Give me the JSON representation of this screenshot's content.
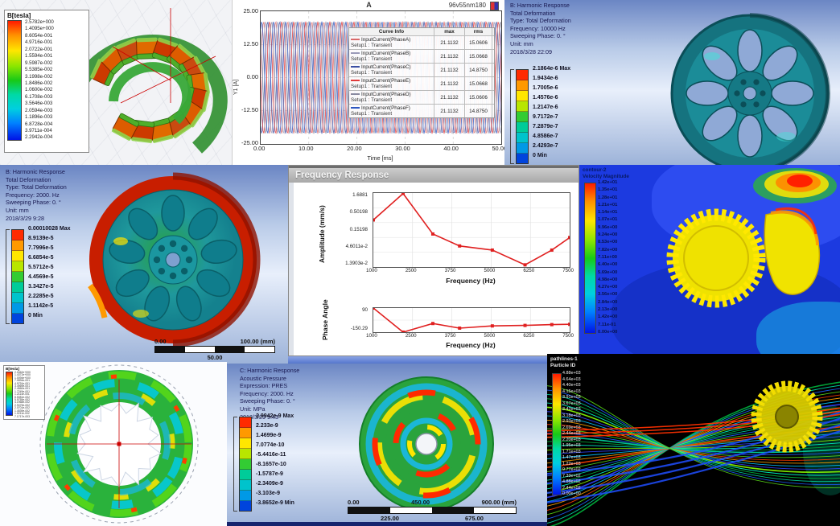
{
  "ansys_band_colors": [
    "#ff2a00",
    "#ff9900",
    "#ffe600",
    "#b8e600",
    "#33cc33",
    "#00cc99",
    "#00c3cc",
    "#0099e6",
    "#0044dd"
  ],
  "panels": {
    "flux_segment": {
      "legend_title": "B[tesla]",
      "legend_values": [
        "2.5782e+000",
        "1.4095e+000",
        "8.6054e-001",
        "4.9716e-001",
        "2.0722e-001",
        "1.5594e-001",
        "9.5987e-002",
        "5.5385e-002",
        "3.1998e-002",
        "1.8486e-002",
        "1.0600e-002",
        "6.1708e-003",
        "3.5646e-003",
        "2.0594e-003",
        "1.1896e-003",
        "6.8728e-004",
        "3.9711e-004",
        "2.2942e-004"
      ]
    },
    "current_plot": {
      "title": "A",
      "model_label": "96v55nm180",
      "y_axis_label": "Y1 [A]",
      "x_axis_label": "Time [ms]",
      "y_ticks": [
        "25.00",
        "12.50",
        "0.00",
        "-12.50",
        "-25.00"
      ],
      "x_ticks": [
        "0.00",
        "10.00",
        "20.00",
        "30.00",
        "40.00",
        "50.00"
      ],
      "table_headers": [
        "Curve Info",
        "max",
        "rms"
      ],
      "curves": [
        {
          "name": "InputCurrent(PhaseA)",
          "setup": "Setup1 : Transient",
          "max": "21.1132",
          "rms": "15.0606",
          "color": "#d96a6a"
        },
        {
          "name": "InputCurrent(PhaseB)",
          "setup": "Setup1 : Transient",
          "max": "21.1132",
          "rms": "15.0668",
          "color": "#9a9ab8"
        },
        {
          "name": "InputCurrent(PhaseC)",
          "setup": "Setup1 : Transient",
          "max": "21.1132",
          "rms": "14.8750",
          "color": "#3c4fa3"
        },
        {
          "name": "InputCurrent(PhaseE)",
          "setup": "Setup1 : Transient",
          "max": "21.1132",
          "rms": "15.0668",
          "color": "#e03a3a"
        },
        {
          "name": "InputCurrent(PhaseD)",
          "setup": "Setup1 : Transient",
          "max": "21.1132",
          "rms": "15.0606",
          "color": "#8a8aa0"
        },
        {
          "name": "InputCurrent(PhaseF)",
          "setup": "Setup1 : Transient",
          "max": "21.1132",
          "rms": "14.8750",
          "color": "#2d56c0"
        }
      ]
    },
    "harmonic_top": {
      "header_lines": [
        "B: Harmonic Response",
        "Total Deformation",
        "Type: Total Deformation",
        "Frequency: 10000 Hz",
        "Sweeping Phase: 0. °",
        "Unit: mm",
        "2018/3/28 22:09"
      ],
      "legend_labels": [
        "2.1864e-6 Max",
        "1.9434e-6",
        "1.7005e-6",
        "1.4576e-6",
        "1.2147e-6",
        "9.7172e-7",
        "7.2879e-7",
        "4.8586e-7",
        "2.4293e-7",
        "0 Min"
      ]
    },
    "harmonic_mid": {
      "header_lines": [
        "B: Harmonic Response",
        "Total Deformation",
        "Type: Total Deformation",
        "Frequency: 2000. Hz",
        "Sweeping Phase: 0. °",
        "Unit: mm",
        "2018/3/29 9:28"
      ],
      "legend_labels": [
        "0.00010028 Max",
        "8.9139e-5",
        "7.7996e-5",
        "6.6854e-5",
        "5.5712e-5",
        "4.4569e-5",
        "3.3427e-5",
        "2.2285e-5",
        "1.1142e-5",
        "0 Min"
      ],
      "scale": {
        "left": "0.00",
        "right": "100.00 (mm)",
        "mid": "50.00"
      }
    },
    "freq_window": {
      "title": "Frequency Response",
      "amp_ylabel": "Amplitude (mm/s)",
      "amp_yticks": [
        "1.6881",
        "0.50198",
        "0.15198",
        "4.6011e-2",
        "1.3903e-2"
      ],
      "x_ticks": [
        "1000",
        "2500",
        "3750",
        "5000",
        "6250",
        "7500"
      ],
      "x_label": "Frequency (Hz)",
      "phase_ylabel": "Phase Angle",
      "phase_yticks": [
        "90",
        "-150.29"
      ]
    },
    "cfd": {
      "header_lines": [
        "contour-2",
        "Velocity Magnitude"
      ],
      "legend_values": [
        "1.42e+01",
        "1.35e+01",
        "1.28e+01",
        "1.21e+01",
        "1.14e+01",
        "1.07e+01",
        "9.96e+00",
        "9.24e+00",
        "8.53e+00",
        "7.82e+00",
        "7.11e+00",
        "6.40e+00",
        "5.69e+00",
        "4.98e+00",
        "4.27e+00",
        "3.56e+00",
        "2.84e+00",
        "2.13e+00",
        "1.42e+00",
        "7.11e-01",
        "0.00e+00"
      ]
    },
    "flux_ring": {
      "legend_title": "B[tesla]",
      "legend_values": [
        "2.0462e+000",
        "1.4372e+000",
        "1.0094e+000",
        "7.0894e-001",
        "4.9791e-001",
        "3.4969e-001",
        "2.4560e-001",
        "1.7249e-001",
        "1.2114e-001",
        "8.5081e-002",
        "5.9755e-002",
        "4.1968e-002",
        "2.9475e-002",
        "2.0701e-002",
        "1.4539e-002",
        "1.0211e-002",
        "7.1717e-003"
      ]
    },
    "acoustic": {
      "header_lines": [
        "C: Harmonic Response",
        "Acoustic Pressure",
        "Expression: PRES",
        "Frequency: 2000. Hz",
        "Sweeping Phase: 0. °",
        "Unit: MPa",
        "2018/3/29 9:43"
      ],
      "legend_labels": [
        "2.9942e-9 Max",
        "2.233e-9",
        "1.4699e-9",
        "7.0774e-10",
        "-5.4416e-11",
        "-8.1657e-10",
        "-1.5787e-9",
        "-2.3409e-9",
        "-3.103e-9",
        "-3.8652e-9 Min"
      ],
      "scale_top": [
        "0.00",
        "450.00",
        "900.00 (mm)"
      ],
      "scale_bottom": [
        "225.00",
        "675.00"
      ]
    },
    "streams": {
      "header_lines": [
        "pathlines-1",
        "Particle ID"
      ],
      "legend_values": [
        "4.88e+03",
        "4.64e+03",
        "4.40e+03",
        "4.15e+03",
        "3.91e+03",
        "3.67e+03",
        "3.42e+03",
        "3.18e+03",
        "2.93e+03",
        "2.69e+03",
        "2.44e+03",
        "2.20e+03",
        "1.95e+03",
        "1.71e+03",
        "1.47e+03",
        "1.22e+03",
        "9.77e+02",
        "7.33e+02",
        "4.88e+02",
        "2.44e+02",
        "0.00e+00"
      ]
    }
  },
  "chart_data": [
    {
      "type": "line",
      "title": "A",
      "subtitle": "96v55nm180",
      "xlabel": "Time [ms]",
      "ylabel": "Y1 [A]",
      "xlim": [
        0,
        50
      ],
      "ylim": [
        -25,
        25
      ],
      "waveform": "sine",
      "amplitude": 21.1132,
      "cycles": 20,
      "series": [
        {
          "name": "InputCurrent(PhaseA)",
          "phase_deg": 0
        },
        {
          "name": "InputCurrent(PhaseB)",
          "phase_deg": -60
        },
        {
          "name": "InputCurrent(PhaseC)",
          "phase_deg": -120
        },
        {
          "name": "InputCurrent(PhaseE)",
          "phase_deg": -180
        },
        {
          "name": "InputCurrent(PhaseD)",
          "phase_deg": -240
        },
        {
          "name": "InputCurrent(PhaseF)",
          "phase_deg": -300
        }
      ]
    },
    {
      "type": "line",
      "title": "Frequency Response - Amplitude",
      "color": "#e02020",
      "xlabel": "Frequency (Hz)",
      "ylabel": "Amplitude (mm/s)",
      "yscale": "log",
      "x": [
        1000,
        2000,
        3000,
        3900,
        5000,
        6100,
        7000,
        7600
      ],
      "y": [
        0.3,
        1.6881,
        0.12,
        0.055,
        0.042,
        0.016,
        0.042,
        0.095
      ],
      "xlim": [
        1000,
        7600
      ],
      "ylim": [
        0.0139,
        1.74
      ]
    },
    {
      "type": "line",
      "title": "Frequency Response - Phase Angle",
      "color": "#e02020",
      "xlabel": "Frequency (Hz)",
      "ylabel": "Phase Angle",
      "yscale": "linear",
      "x": [
        1000,
        2000,
        3000,
        3900,
        5000,
        6100,
        7000,
        7600
      ],
      "y": [
        90,
        -150,
        -64,
        -110,
        -88,
        -83,
        -75,
        -72
      ],
      "xlim": [
        1000,
        7600
      ],
      "ylim": [
        -150.29,
        90
      ]
    }
  ]
}
